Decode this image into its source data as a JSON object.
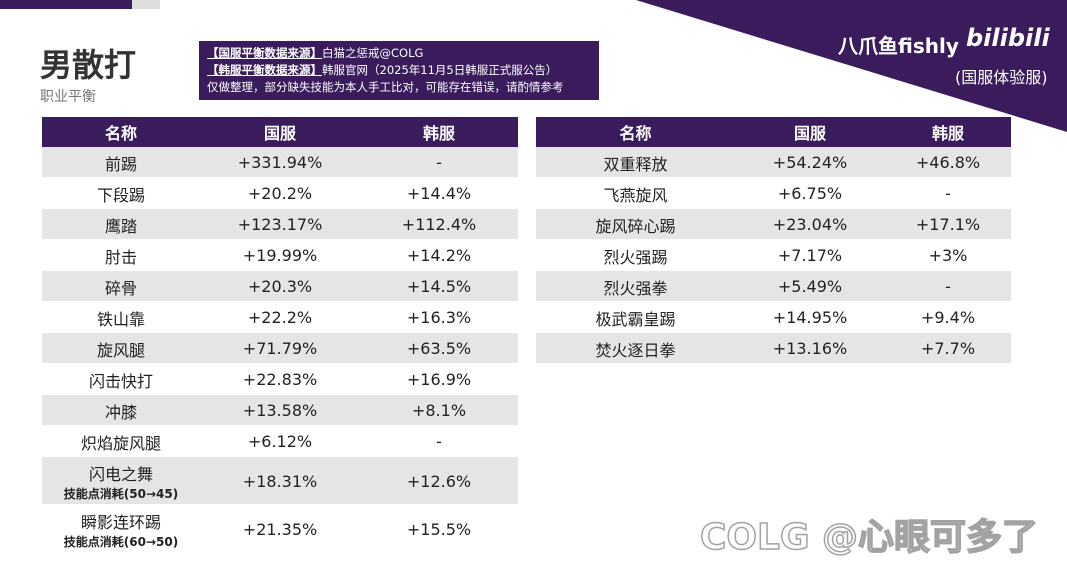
{
  "header": {
    "title": "男散打",
    "subtitle": "职业平衡",
    "brand": "八爪鱼fishly",
    "platform": "bilibili",
    "server_note": "(国服体验服)"
  },
  "source_box": {
    "lines": [
      {
        "label": "【国服平衡数据来源】",
        "text": "白猫之惩戒@COLG"
      },
      {
        "label": "【韩服平衡数据来源】",
        "text": "韩服官网（2025年11月5日韩服正式服公告）"
      },
      {
        "text": "仅做整理，部分缺失技能为本人手工比对，可能存在错误，请酌情参考"
      }
    ]
  },
  "tables": [
    {
      "columns": [
        "名称",
        "国服",
        "韩服"
      ],
      "rows": [
        {
          "name": "前踢",
          "cn": "+331.94%",
          "kr": "-"
        },
        {
          "name": "下段踢",
          "cn": "+20.2%",
          "kr": "+14.4%"
        },
        {
          "name": "鹰踏",
          "cn": "+123.17%",
          "kr": "+112.4%"
        },
        {
          "name": "肘击",
          "cn": "+19.99%",
          "kr": "+14.2%"
        },
        {
          "name": "碎骨",
          "cn": "+20.3%",
          "kr": "+14.5%"
        },
        {
          "name": "铁山靠",
          "cn": "+22.2%",
          "kr": "+16.3%"
        },
        {
          "name": "旋风腿",
          "cn": "+71.79%",
          "kr": "+63.5%"
        },
        {
          "name": "闪击快打",
          "cn": "+22.83%",
          "kr": "+16.9%"
        },
        {
          "name": "冲膝",
          "cn": "+13.58%",
          "kr": "+8.1%"
        },
        {
          "name": "炽焰旋风腿",
          "cn": "+6.12%",
          "kr": "-"
        },
        {
          "name": "闪电之舞",
          "note": "技能点消耗(50→45)",
          "cn": "+18.31%",
          "kr": "+12.6%"
        },
        {
          "name": "瞬影连环踢",
          "note": "技能点消耗(60→50)",
          "cn": "+21.35%",
          "kr": "+15.5%"
        }
      ]
    },
    {
      "columns": [
        "名称",
        "国服",
        "韩服"
      ],
      "rows": [
        {
          "name": "双重释放",
          "cn": "+54.24%",
          "kr": "+46.8%"
        },
        {
          "name": "飞燕旋风",
          "cn": "+6.75%",
          "kr": "-"
        },
        {
          "name": "旋风碎心踢",
          "cn": "+23.04%",
          "kr": "+17.1%"
        },
        {
          "name": "烈火强踢",
          "cn": "+7.17%",
          "kr": "+3%"
        },
        {
          "name": "烈火强拳",
          "cn": "+5.49%",
          "kr": "-"
        },
        {
          "name": "极武霸皇踢",
          "cn": "+14.95%",
          "kr": "+9.4%"
        },
        {
          "name": "焚火逐日拳",
          "cn": "+13.16%",
          "kr": "+7.7%"
        }
      ]
    }
  ],
  "watermark": "COLG @心眼可多了"
}
